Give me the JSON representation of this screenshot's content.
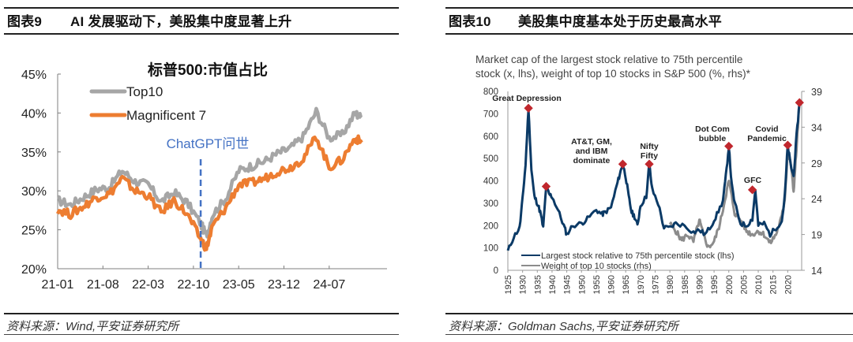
{
  "left_panel": {
    "figure_number": "图表9",
    "figure_title": "AI 发展驱动下，美股集中度显著上升",
    "source": "资料来源：Wind,平安证券研究所"
  },
  "right_panel": {
    "figure_number": "图表10",
    "figure_title": "美股集中度基本处于历史最高水平",
    "source": "资料来源：Goldman Sachs,平安证券研究所"
  },
  "colors": {
    "top10": "#A6A6A6",
    "mag7": "#ED7D31",
    "chatgpt_line": "#4472C4",
    "largest_stock": "#0B3A66",
    "weight_top10": "#8C8C8C",
    "marker": "#C0272D"
  },
  "chart_data": [
    {
      "type": "line",
      "title": "标普500:市值占比",
      "xlabel": "",
      "ylabel": "",
      "ylim": [
        0.2,
        0.45
      ],
      "y_ticks": [
        "20%",
        "25%",
        "30%",
        "35%",
        "40%",
        "45%"
      ],
      "x_ticks": [
        "21-01",
        "21-08",
        "22-03",
        "22-10",
        "23-05",
        "23-12",
        "24-07"
      ],
      "legend": [
        "Top10",
        "Magnificent 7"
      ],
      "legend_position": "upper-left",
      "annotation": {
        "label": "ChatGPT问世",
        "x": "22-11",
        "style": "dashed vertical line"
      },
      "x": [
        "21-01",
        "21-03",
        "21-05",
        "21-07",
        "21-09",
        "21-11",
        "22-01",
        "22-03",
        "22-05",
        "22-07",
        "22-09",
        "22-11",
        "22-12",
        "23-01",
        "23-03",
        "23-05",
        "23-07",
        "23-09",
        "23-11",
        "24-01",
        "24-03",
        "24-05",
        "24-07",
        "24-09",
        "24-11",
        "24-12"
      ],
      "series": [
        {
          "name": "Top10",
          "values": [
            28.8,
            28.2,
            29.2,
            30.2,
            30.5,
            32.6,
            31.2,
            30.8,
            28.6,
            29.8,
            28.5,
            26.0,
            24.2,
            27.0,
            29.0,
            32.6,
            33.2,
            33.8,
            34.8,
            35.5,
            37.0,
            40.2,
            36.8,
            37.2,
            40.0,
            39.4
          ]
        },
        {
          "name": "Magnificent 7",
          "values": [
            27.6,
            27.0,
            28.0,
            29.2,
            29.6,
            31.6,
            30.0,
            29.4,
            27.2,
            28.8,
            27.0,
            24.0,
            22.6,
            25.5,
            27.8,
            30.8,
            31.0,
            31.6,
            32.5,
            33.0,
            34.2,
            37.0,
            33.0,
            34.0,
            36.8,
            36.2
          ]
        }
      ]
    },
    {
      "type": "line",
      "title": "Market cap of the largest stock relative to 75th percentile stock (x, lhs), weight of top 10 stocks in S&P 500 (%, rhs)*",
      "xlabel": "",
      "ylabel_left": "x",
      "ylabel_right": "%",
      "ylim_left": [
        0,
        800
      ],
      "ylim_right": [
        14,
        39
      ],
      "y_ticks_left": [
        "0",
        "100",
        "200",
        "300",
        "400",
        "500",
        "600",
        "700",
        "800"
      ],
      "y_ticks_right": [
        "14",
        "19",
        "24",
        "29",
        "34",
        "39"
      ],
      "x_ticks": [
        "1925",
        "1930",
        "1935",
        "1940",
        "1945",
        "1950",
        "1955",
        "1960",
        "1965",
        "1970",
        "1975",
        "1980",
        "1985",
        "1990",
        "1995",
        "2000",
        "2005",
        "2010",
        "2015",
        "2020"
      ],
      "legend": [
        "Largest stock relative to 75th percentile stock (lhs)",
        "Weight of top 10 stocks (rhs)"
      ],
      "legend_position": "lower-left",
      "annotations": [
        {
          "label": "Great Depression",
          "x": 1932,
          "y": 725
        },
        {
          "label": "",
          "x": 1938,
          "y": 375
        },
        {
          "label": "AT&T, GM, and IBM dominate",
          "x": 1964,
          "y": 475
        },
        {
          "label": "Nifty Fifty",
          "x": 1973,
          "y": 475
        },
        {
          "label": "Dot Com bubble",
          "x": 2000,
          "y": 555
        },
        {
          "label": "GFC",
          "x": 2008,
          "y": 360
        },
        {
          "label": "Covid Pandemic",
          "x": 2020,
          "y": 560
        },
        {
          "label": "",
          "x": 2024,
          "y": 750
        }
      ],
      "series": [
        {
          "name": "Largest stock relative to 75th percentile stock (lhs)",
          "axis": "left",
          "x": [
            1925,
            1927,
            1929,
            1930,
            1931,
            1932,
            1933,
            1934,
            1935,
            1936,
            1937,
            1938,
            1939,
            1940,
            1942,
            1944,
            1945,
            1947,
            1950,
            1952,
            1955,
            1957,
            1958,
            1960,
            1962,
            1963,
            1964,
            1965,
            1966,
            1967,
            1968,
            1969,
            1970,
            1972,
            1973,
            1974,
            1976,
            1978,
            1980,
            1982,
            1985,
            1988,
            1990,
            1992,
            1994,
            1996,
            1998,
            1999,
            2000,
            2001,
            2002,
            2004,
            2006,
            2008,
            2009,
            2010,
            2012,
            2014,
            2016,
            2018,
            2019,
            2020,
            2021,
            2022,
            2023,
            2024
          ],
          "values": [
            85,
            150,
            190,
            320,
            470,
            725,
            450,
            330,
            300,
            260,
            190,
            375,
            340,
            330,
            270,
            200,
            160,
            200,
            210,
            230,
            270,
            250,
            260,
            280,
            380,
            430,
            475,
            420,
            330,
            260,
            240,
            200,
            290,
            330,
            475,
            360,
            300,
            190,
            190,
            210,
            200,
            170,
            180,
            160,
            200,
            250,
            310,
            420,
            555,
            380,
            300,
            210,
            200,
            230,
            360,
            200,
            210,
            160,
            190,
            220,
            330,
            560,
            470,
            420,
            600,
            750
          ]
        },
        {
          "name": "Weight of top 10 stocks (rhs)",
          "axis": "right",
          "x": [
            1980,
            1982,
            1984,
            1986,
            1988,
            1990,
            1991,
            1993,
            1995,
            1997,
            1999,
            2000,
            2002,
            2004,
            2006,
            2008,
            2010,
            2012,
            2014,
            2016,
            2018,
            2019,
            2020,
            2021,
            2022,
            2023,
            2024
          ],
          "values": [
            20.5,
            19.5,
            18.2,
            19.0,
            18.0,
            21.0,
            19.5,
            17.2,
            18.0,
            20.5,
            24.5,
            26.5,
            22.0,
            21.0,
            19.5,
            19.0,
            19.5,
            19.0,
            17.8,
            19.0,
            21.5,
            24.0,
            30.5,
            29.0,
            25.0,
            31.0,
            37.5
          ]
        }
      ]
    }
  ]
}
